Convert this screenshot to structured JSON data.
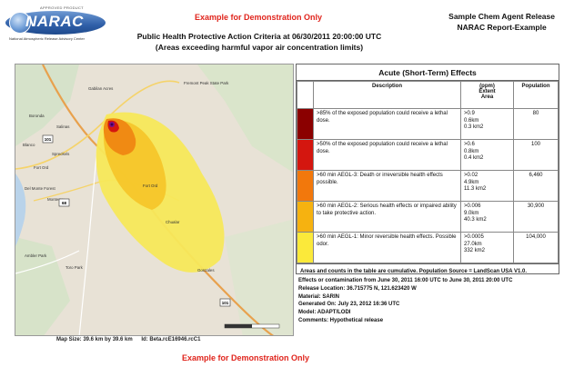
{
  "logo": {
    "approved": "APPROVED PRODUCT",
    "name": "NARAC",
    "sub": "National Atmospheric Release Advisory Center"
  },
  "demo_top": "Example for Demonstration Only",
  "demo_bottom": "Example for Demonstration Only",
  "header_right": {
    "line1": "Sample Chem Agent Release",
    "line2": "NARAC Report-Example"
  },
  "criteria": {
    "line1": "Public Health Protective Action Criteria at 06/30/2011 20:00:00 UTC",
    "line2": "(Areas exceeding harmful vapor air concentration limits)"
  },
  "map": {
    "labels": [
      "Fremont Peak State Park",
      "Gabilan Acres",
      "Boronda",
      "Salinas",
      "Blanco",
      "Spreckels",
      "Fort Ord",
      "Del Monte Forest",
      "Monterey",
      "Fort Ord",
      "Chualar",
      "Gonzales",
      "Ambler Park",
      "Toro Park"
    ],
    "routes": [
      "101",
      "68",
      "101"
    ],
    "caption_size": "Map Size: 39.6 km by 39.6 km",
    "caption_id": "Id: Beta.rcE16946.rcC1"
  },
  "effects": {
    "title": "Acute (Short-Term) Effects",
    "headers": {
      "description": "Description",
      "extent": "(ppm)\nExtent\nArea",
      "population": "Population"
    },
    "rows": [
      {
        "color": "#8b0000",
        "description": ">85% of the exposed population could receive a lethal dose.",
        "ppm": ">0.9",
        "extent": "0.6km",
        "area": "0.3 km2",
        "population": "80"
      },
      {
        "color": "#d4160f",
        "description": ">50% of the exposed population could receive a lethal dose.",
        "ppm": ">0.6",
        "extent": "0.8km",
        "area": "0.4 km2",
        "population": "100"
      },
      {
        "color": "#f2780c",
        "description": ">60 min AEGL-3: Death or irreversible health effects possible.",
        "ppm": ">0.02",
        "extent": "4.9km",
        "area": "11.3 km2",
        "population": "6,460"
      },
      {
        "color": "#f6b210",
        "description": ">60 min AEGL-2: Serious health effects or impaired ability to take protective action.",
        "ppm": ">0.006",
        "extent": "9.0km",
        "area": "40.3 km2",
        "population": "30,900"
      },
      {
        "color": "#fbe93a",
        "description": ">60 min AEGL-1: Minor reversible health effects. Possible odor.",
        "ppm": ">0.0005",
        "extent": "27.0km",
        "area": "332 km2",
        "population": "104,000"
      }
    ],
    "footnote": "Areas and counts in the table are cumulative. Population Source = LandScan USA V1.0."
  },
  "meta": {
    "effects_line": "Effects or contamination from June 30, 2011 16:00 UTC to June 30, 2011 20:00 UTC",
    "release_location": "Release Location: 36.715775 N, 121.623420 W",
    "material": "Material: SARIN",
    "generated": "Generated On: July 23, 2012 16:36 UTC",
    "model": "Model: ADAPT/LODI",
    "comments": "Comments: Hypothetical release"
  }
}
